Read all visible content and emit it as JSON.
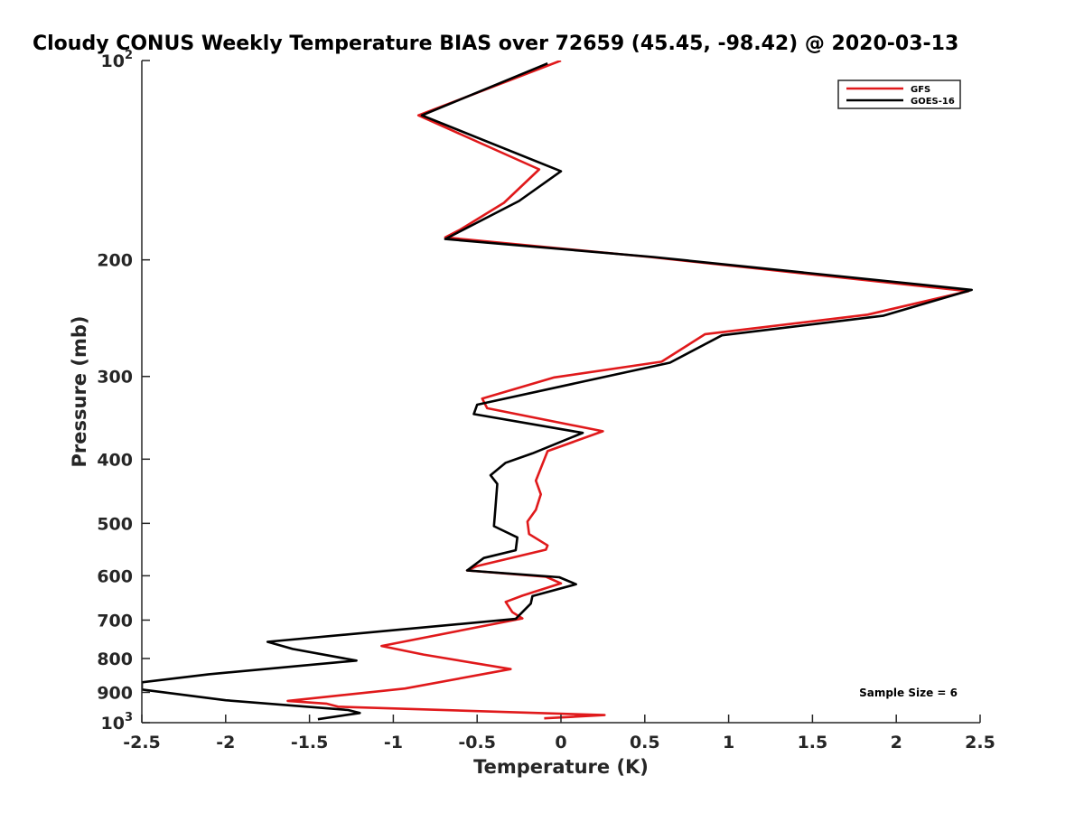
{
  "chart_data": {
    "type": "line",
    "title": "Cloudy CONUS Weekly Temperature BIAS over 72659 (45.45, -98.42) @ 2020-03-13",
    "xlabel": "Temperature (K)",
    "ylabel": "Pressure (mb)",
    "xlim": [
      -2.5,
      2.5
    ],
    "ylim": [
      100,
      1000
    ],
    "y_scale": "log",
    "y_reversed": true,
    "grid": false,
    "legend_position": "top-right",
    "xticks": [
      {
        "value": -2.5,
        "label": "-2.5"
      },
      {
        "value": -2,
        "label": "-2"
      },
      {
        "value": -1.5,
        "label": "-1.5"
      },
      {
        "value": -1,
        "label": "-1"
      },
      {
        "value": -0.5,
        "label": "-0.5"
      },
      {
        "value": 0,
        "label": "0"
      },
      {
        "value": 0.5,
        "label": "0.5"
      },
      {
        "value": 1,
        "label": "1"
      },
      {
        "value": 1.5,
        "label": "1.5"
      },
      {
        "value": 2,
        "label": "2"
      },
      {
        "value": 2.5,
        "label": "2.5"
      }
    ],
    "yticks": [
      {
        "value": 100,
        "base": "10",
        "exp": "2"
      },
      {
        "value": 200,
        "base": "200",
        "exp": ""
      },
      {
        "value": 300,
        "base": "300",
        "exp": ""
      },
      {
        "value": 400,
        "base": "400",
        "exp": ""
      },
      {
        "value": 500,
        "base": "500",
        "exp": ""
      },
      {
        "value": 600,
        "base": "600",
        "exp": ""
      },
      {
        "value": 700,
        "base": "700",
        "exp": ""
      },
      {
        "value": 800,
        "base": "800",
        "exp": ""
      },
      {
        "value": 900,
        "base": "900",
        "exp": ""
      },
      {
        "value": 1000,
        "base": "10",
        "exp": "3"
      }
    ],
    "series": [
      {
        "name": "GFS",
        "color": "#e0191b",
        "x": [
          0.0,
          -0.85,
          -0.13,
          -0.34,
          -0.6,
          -0.69,
          0.53,
          2.43,
          1.83,
          0.86,
          0.6,
          -0.04,
          -0.47,
          -0.44,
          0.25,
          -0.08,
          -0.15,
          -0.12,
          -0.15,
          -0.2,
          -0.19,
          -0.08,
          -0.09,
          -0.5,
          -0.56,
          -0.09,
          0.0,
          -0.23,
          -0.33,
          -0.29,
          -0.23,
          -1.07,
          -0.82,
          -0.3,
          -0.93,
          -1.63,
          -1.4,
          -1.33,
          0.26,
          -0.1
        ],
        "y": [
          100,
          121,
          146,
          164,
          180,
          185,
          198,
          223,
          242,
          259,
          285,
          301,
          324,
          335,
          363,
          389,
          431,
          452,
          477,
          497,
          519,
          540,
          548,
          580,
          589,
          602,
          616,
          643,
          657,
          681,
          696,
          766,
          789,
          830,
          888,
          927,
          936,
          946,
          974,
          985
        ]
      },
      {
        "name": "GOES-16",
        "color": "#000000",
        "x": [
          -0.08,
          -0.83,
          0.0,
          -0.25,
          -0.69,
          0.55,
          2.45,
          1.92,
          0.96,
          0.65,
          -0.5,
          -0.52,
          0.13,
          -0.17,
          -0.33,
          -0.42,
          -0.38,
          -0.39,
          -0.4,
          -0.26,
          -0.27,
          -0.46,
          -0.56,
          -0.01,
          0.09,
          -0.17,
          -0.18,
          -0.27,
          -1.75,
          -1.6,
          -1.22,
          -2.1,
          -2.5,
          -2.5,
          -2.0,
          -1.27,
          -1.2,
          -1.45
        ],
        "y": [
          101,
          121,
          147,
          163,
          186,
          198,
          222,
          243,
          260,
          286,
          331,
          342,
          365,
          392,
          405,
          423,
          436,
          471,
          505,
          525,
          549,
          564,
          589,
          603,
          618,
          644,
          661,
          697,
          755,
          774,
          806,
          845,
          869,
          891,
          925,
          957,
          967,
          988
        ]
      }
    ],
    "annotations": [
      "Sample Size = 6"
    ]
  }
}
